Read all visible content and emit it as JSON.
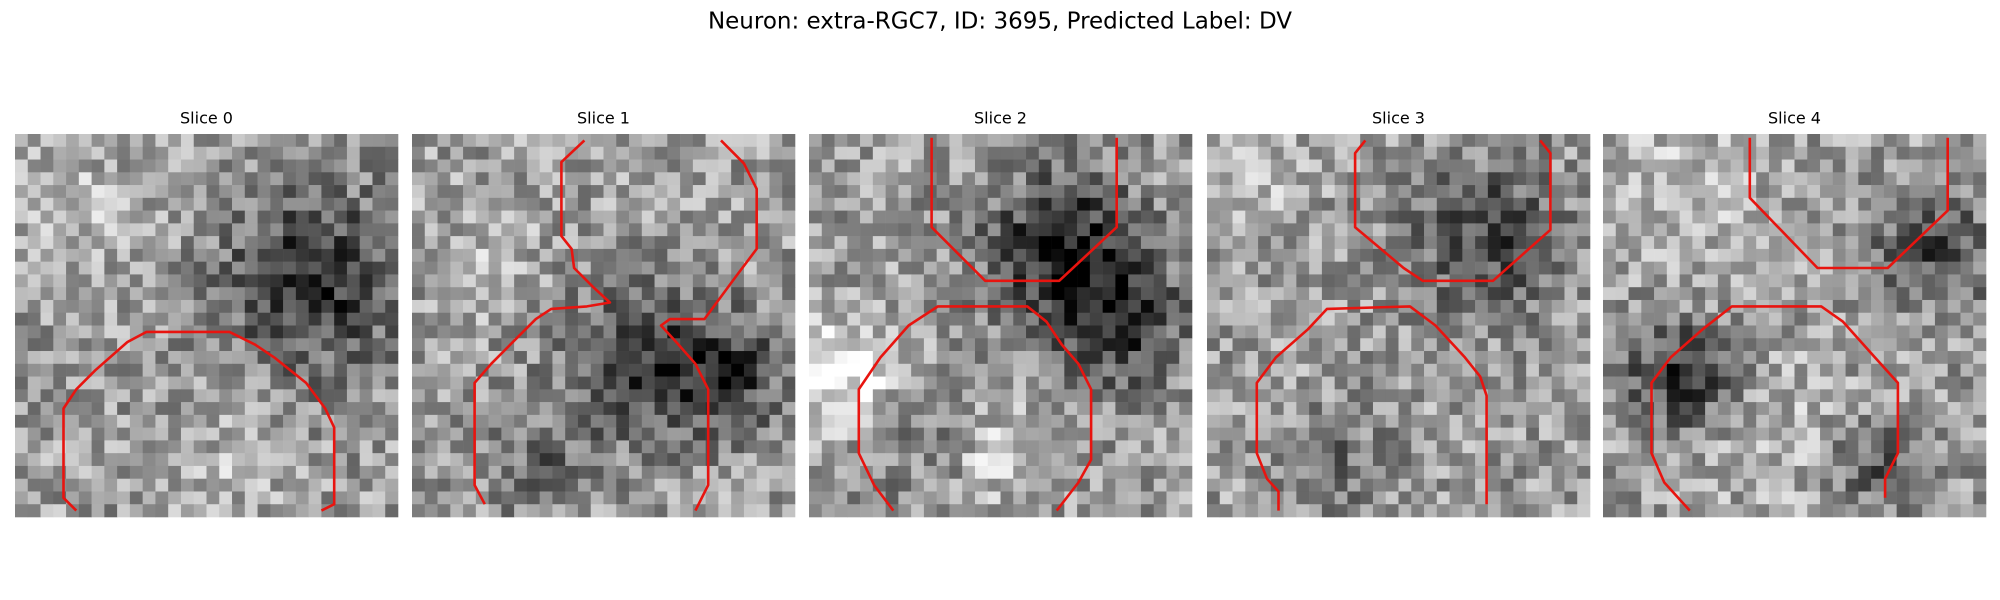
{
  "title": "Neuron: extra-RGC7, ID: 3695, Predicted Label: DV",
  "panels": [
    {
      "title": "Slice 0"
    },
    {
      "title": "Slice 1"
    },
    {
      "title": "Slice 2"
    },
    {
      "title": "Slice 3"
    },
    {
      "title": "Slice 4"
    }
  ]
}
